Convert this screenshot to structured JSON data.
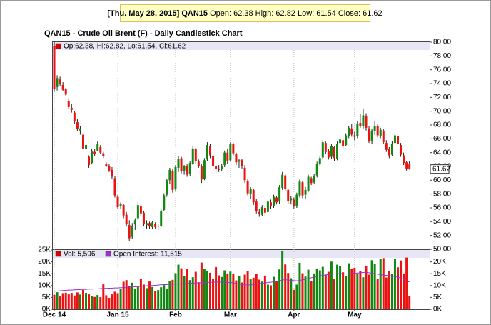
{
  "header": {
    "date": "[Thu. May 28, 2015]",
    "symbol": "QAN15",
    "stats": "Open: 62.38 High: 62.82 Low: 61.54 Close: 61.62"
  },
  "chart_data": [
    {
      "type": "candlestick",
      "title": "QAN15 - Crude Oil Brent (F) - Daily Candlestick Chart",
      "legend": "Op:62.38, Hi:62.82, Lo:61.54, Cl:61.62",
      "legend_color": "#dd0000",
      "up_color": "#118811",
      "down_color": "#ee1111",
      "xlim": [
        -0.5,
        130
      ],
      "xticks": [
        {
          "value": 0,
          "label": "Dec 14"
        },
        {
          "value": 22,
          "label": "Jan 15"
        },
        {
          "value": 42,
          "label": "Feb"
        },
        {
          "value": 61,
          "label": "Mar"
        },
        {
          "value": 83,
          "label": "Apr"
        },
        {
          "value": 104,
          "label": "May"
        }
      ],
      "ylim": [
        50,
        80
      ],
      "yticks": [
        {
          "value": 50,
          "label": "50.00"
        },
        {
          "value": 52,
          "label": "52.00"
        },
        {
          "value": 54,
          "label": "54.00"
        },
        {
          "value": 56,
          "label": "56.00"
        },
        {
          "value": 58,
          "label": "58.00"
        },
        {
          "value": 60,
          "label": "60.00"
        },
        {
          "value": 62,
          "label": "62.00"
        },
        {
          "value": 64,
          "label": "64.00"
        },
        {
          "value": 66,
          "label": "66.00"
        },
        {
          "value": 68,
          "label": "68.00"
        },
        {
          "value": 70,
          "label": "70.00"
        },
        {
          "value": 72,
          "label": "72.00"
        },
        {
          "value": 74,
          "label": "74.00"
        },
        {
          "value": 76,
          "label": "76.00"
        },
        {
          "value": 78,
          "label": "78.00"
        },
        {
          "value": 80,
          "label": "80.00"
        }
      ],
      "ohlc": [
        [
          79.5,
          80,
          72.8,
          73.2
        ],
        [
          73.5,
          75.2,
          73,
          74.8
        ],
        [
          74.6,
          75,
          73.6,
          73.9
        ],
        [
          73.8,
          74.2,
          72.9,
          73.1
        ],
        [
          73.2,
          73.4,
          72.2,
          72.4
        ],
        [
          71.5,
          71.9,
          70.3,
          70.6
        ],
        [
          70.5,
          71,
          69.8,
          70.2
        ],
        [
          69.8,
          70,
          68.2,
          68.5
        ],
        [
          68.4,
          68.9,
          67.1,
          67.4
        ],
        [
          67.2,
          67.8,
          66.6,
          67.5
        ],
        [
          66.6,
          66.9,
          64.3,
          64.6
        ],
        [
          64.5,
          65.4,
          63.8,
          65.1
        ],
        [
          63.4,
          63.6,
          61.8,
          62.2
        ],
        [
          62.5,
          64.6,
          62.3,
          64.2
        ],
        [
          64.1,
          64.5,
          63.5,
          63.8
        ],
        [
          64.3,
          65.6,
          64.2,
          65.2
        ],
        [
          64.8,
          65.1,
          63.8,
          64
        ],
        [
          63.9,
          64.1,
          63.2,
          63.5
        ],
        [
          62.3,
          62.6,
          61.9,
          62.1
        ],
        [
          62,
          62.3,
          61.2,
          61.4
        ],
        [
          61.5,
          61.9,
          60.2,
          60.5
        ],
        [
          60.3,
          60.6,
          57.5,
          57.8
        ],
        [
          57.6,
          57.9,
          55.8,
          56.1
        ],
        [
          56.3,
          56.8,
          55.9,
          56.5
        ],
        [
          56.4,
          56.6,
          54.5,
          54.9
        ],
        [
          55,
          55.4,
          53.3,
          53.6
        ],
        [
          53.5,
          54.2,
          51.2,
          51.6
        ],
        [
          51.8,
          53.8,
          51.5,
          53.4
        ],
        [
          53.6,
          54.5,
          52.8,
          54.2
        ],
        [
          54.5,
          56.8,
          54.2,
          56.4
        ],
        [
          56.2,
          56.4,
          54.8,
          55.2
        ],
        [
          55.3,
          55.6,
          53.3,
          53.6
        ],
        [
          53.5,
          54.2,
          53,
          53.8
        ],
        [
          53.8,
          54,
          52.9,
          53.3
        ],
        [
          53.2,
          54.1,
          53,
          53.9
        ],
        [
          53.7,
          53.9,
          52.9,
          53.2
        ],
        [
          53.3,
          53.6,
          52.8,
          53.4
        ],
        [
          53.4,
          55.8,
          53.2,
          55.6
        ],
        [
          55.7,
          58.1,
          55.5,
          57.8
        ],
        [
          57.9,
          60.2,
          57.6,
          60
        ],
        [
          60,
          61.8,
          59.5,
          61.5
        ],
        [
          61.3,
          61.6,
          58.2,
          58.6
        ],
        [
          58.7,
          62.2,
          58.5,
          61.9
        ],
        [
          61.8,
          63.5,
          61.2,
          63.1
        ],
        [
          63.2,
          63.4,
          61,
          61.3
        ],
        [
          61.4,
          62.2,
          60.8,
          62
        ],
        [
          62.1,
          62.3,
          60.5,
          60.8
        ],
        [
          60.9,
          62.8,
          60.6,
          62.5
        ],
        [
          62.4,
          64.9,
          62.2,
          64.6
        ],
        [
          64.5,
          64.7,
          62.4,
          62.8
        ],
        [
          62.7,
          63,
          61.8,
          62.1
        ],
        [
          62,
          62.3,
          59.6,
          60.1
        ],
        [
          60.2,
          63.2,
          60,
          62.9
        ],
        [
          63,
          65.5,
          62.8,
          65.1
        ],
        [
          65,
          65.3,
          63.2,
          63.6
        ],
        [
          63.5,
          63.9,
          61.6,
          62
        ],
        [
          62.1,
          62.3,
          61.1,
          61.6
        ],
        [
          61.7,
          62.2,
          61.2,
          61.5
        ],
        [
          61.6,
          62.4,
          61.3,
          62.1
        ],
        [
          62.2,
          64.3,
          61.9,
          64
        ],
        [
          64,
          64.5,
          62.4,
          62.8
        ],
        [
          62.9,
          65.5,
          62.7,
          65.3
        ],
        [
          65.2,
          65.4,
          63.6,
          63.9
        ],
        [
          63.8,
          64,
          62.2,
          62.6
        ],
        [
          62.7,
          63.1,
          61.8,
          62.9
        ],
        [
          62.9,
          63.1,
          61.7,
          62
        ],
        [
          61.8,
          62.2,
          59.6,
          60
        ],
        [
          59.9,
          60.2,
          57.8,
          58.1
        ],
        [
          58,
          59,
          57.3,
          58.7
        ],
        [
          58.6,
          58.8,
          56.4,
          56.8
        ],
        [
          56.9,
          57.3,
          55.2,
          55.5
        ],
        [
          55.4,
          55.9,
          54.7,
          55.1
        ],
        [
          55,
          56.4,
          54.8,
          56.1
        ],
        [
          56,
          56.2,
          54.9,
          55.3
        ],
        [
          55.4,
          57.2,
          55.2,
          56.9
        ],
        [
          56.8,
          57.2,
          55.8,
          56.2
        ],
        [
          56.3,
          57.9,
          56,
          57.6
        ],
        [
          57.5,
          57.7,
          56.5,
          56.8
        ],
        [
          56.9,
          59.3,
          56.6,
          59
        ],
        [
          58.9,
          61.2,
          58.6,
          60.8
        ],
        [
          60.7,
          60.9,
          58.4,
          58.7
        ],
        [
          58.6,
          58.8,
          56.6,
          57
        ],
        [
          57.1,
          57.7,
          56.5,
          57.4
        ],
        [
          57.2,
          57.5,
          55.9,
          56.2
        ],
        [
          56.3,
          58.2,
          56,
          57.9
        ],
        [
          57.8,
          60.1,
          57.5,
          59.8
        ],
        [
          59.7,
          59.9,
          57.4,
          57.8
        ],
        [
          57.9,
          59,
          57.3,
          58.6
        ],
        [
          58.5,
          60.8,
          58.3,
          60.5
        ],
        [
          60.3,
          60.5,
          59.3,
          59.6
        ],
        [
          59.7,
          60.9,
          59.4,
          60.6
        ],
        [
          60.7,
          62.7,
          60.4,
          62.4
        ],
        [
          62.3,
          63.5,
          62.1,
          63.2
        ],
        [
          63.3,
          65.8,
          63,
          65.5
        ],
        [
          65.4,
          65.6,
          63.8,
          64.1
        ],
        [
          64.2,
          64.5,
          63,
          63.3
        ],
        [
          63.4,
          65.2,
          63.1,
          64.9
        ],
        [
          64.8,
          65,
          62.8,
          63.2
        ],
        [
          63.1,
          65.6,
          62.9,
          65.3
        ],
        [
          65.4,
          66.2,
          65,
          65.9
        ],
        [
          65.8,
          66.1,
          64.6,
          65
        ],
        [
          65.1,
          66.8,
          64.9,
          66.5
        ],
        [
          66.4,
          67.9,
          66.1,
          67.6
        ],
        [
          67.5,
          68.2,
          66.3,
          66.6
        ],
        [
          66.5,
          67,
          65.8,
          66.3
        ],
        [
          66.4,
          68.6,
          66.1,
          68.2
        ],
        [
          68.3,
          69.6,
          67.6,
          67.9
        ],
        [
          67.8,
          70.4,
          67.5,
          69.4
        ],
        [
          69.3,
          69.7,
          67.2,
          67.6
        ],
        [
          67.5,
          67.8,
          65.4,
          65.6
        ],
        [
          65.7,
          67.5,
          65.2,
          67.2
        ],
        [
          67.1,
          68.6,
          66.6,
          67.9
        ],
        [
          67.8,
          68.1,
          66.2,
          66.5
        ],
        [
          66.4,
          67.6,
          66.1,
          67.3
        ],
        [
          67.2,
          67.4,
          65.2,
          65.5
        ],
        [
          65.4,
          65.8,
          64.1,
          64.4
        ],
        [
          64.5,
          64.8,
          63.2,
          63.6
        ],
        [
          63.7,
          65.7,
          63.5,
          65.3
        ],
        [
          65.4,
          66.8,
          65.2,
          66.5
        ],
        [
          66.4,
          66.6,
          65,
          65.2
        ],
        [
          65.1,
          65.4,
          63.4,
          63.7
        ],
        [
          63.6,
          64,
          62.2,
          62.5
        ],
        [
          62.6,
          62.8,
          61.4,
          61.7
        ],
        [
          62.38,
          62.82,
          61.54,
          61.62
        ]
      ]
    },
    {
      "type": "volume",
      "xlim": [
        -0.5,
        130
      ],
      "ylim": [
        0,
        25000
      ],
      "yticks": [
        {
          "value": 0,
          "label": "0K"
        },
        {
          "value": 5000,
          "label": "5K"
        },
        {
          "value": 10000,
          "label": "10K"
        },
        {
          "value": 15000,
          "label": "15K"
        },
        {
          "value": 20000,
          "label": "20K"
        },
        {
          "value": 25000,
          "label": "25K"
        }
      ],
      "y2lim": [
        0,
        25000
      ],
      "y2ticks": [
        {
          "value": 0,
          "label": "0K"
        },
        {
          "value": 5000,
          "label": "5K"
        },
        {
          "value": 10000,
          "label": "10K"
        },
        {
          "value": 15000,
          "label": "15K"
        },
        {
          "value": 20000,
          "label": "20K"
        }
      ],
      "series": [
        {
          "name": "Vol: 5,596",
          "color": "#dd0000",
          "values": [
            6100,
            7200,
            5400,
            6800,
            7000,
            6500,
            6900,
            5800,
            7100,
            6200,
            8200,
            6900,
            6300,
            5600,
            5200,
            6000,
            5100,
            10500,
            5900,
            4800,
            6300,
            7400,
            6800,
            8500,
            11600,
            12300,
            9800,
            11200,
            8700,
            9500,
            12800,
            10400,
            8900,
            11700,
            9400,
            7800,
            8100,
            9300,
            10200,
            8600,
            11900,
            12400,
            15200,
            18800,
            17300,
            14100,
            16900,
            12300,
            13500,
            15800,
            11400,
            19700,
            17100,
            16200,
            15400,
            12900,
            17800,
            14300,
            13600,
            16400,
            15100,
            15900,
            14800,
            12200,
            13900,
            11300,
            14600,
            16100,
            12800,
            13300,
            15000,
            12500,
            11700,
            14200,
            10400,
            10100,
            13700,
            11900,
            16800,
            24600,
            18900,
            15300,
            13100,
            8200,
            10400,
            19600,
            15200,
            13800,
            16700,
            11900,
            15100,
            17200,
            16400,
            17900,
            14600,
            15800,
            20100,
            12700,
            18800,
            18300,
            15600,
            13900,
            19400,
            16900,
            17500,
            15100,
            16100,
            13500,
            18400,
            14600,
            20700,
            19200,
            12900,
            21300,
            21600,
            13400,
            16200,
            14800,
            21200,
            17700,
            20600,
            15100,
            21800,
            5596
          ]
        },
        {
          "name": "Open Interest: 11,515",
          "color": "#9933cc",
          "axis": "y2",
          "values": [
            7600,
            7700,
            7800,
            7900,
            8000,
            8100,
            8100,
            8200,
            8300,
            8300,
            8400,
            8400,
            8500,
            8500,
            8600,
            8600,
            8700,
            8800,
            8800,
            8900,
            8900,
            9000,
            9000,
            9100,
            9100,
            9200,
            9300,
            9400,
            9500,
            9600,
            9700,
            9800,
            9900,
            10000,
            10000,
            10100,
            10200,
            10300,
            10400,
            10400,
            10500,
            10600,
            10600,
            10700,
            10800,
            10800,
            10900,
            11000,
            11000,
            11100,
            11200,
            11200,
            11300,
            11300,
            11400,
            11400,
            11500,
            11500,
            11400,
            11400,
            11300,
            11300,
            11200,
            10900,
            10600,
            10400,
            10300,
            10200,
            10300,
            10400,
            10600,
            10800,
            11000,
            11100,
            11300,
            11400,
            11600,
            11800,
            12000,
            12300,
            12500,
            12300,
            12200,
            12100,
            12000,
            12200,
            12400,
            12700,
            13000,
            13300,
            13600,
            13900,
            14100,
            14300,
            14500,
            14700,
            14800,
            14900,
            15000,
            15100,
            15000,
            14900,
            15000,
            15100,
            15200,
            15300,
            15400,
            15500,
            15600,
            15400,
            15200,
            15000,
            14800,
            14600,
            14400,
            14300,
            14200,
            14000,
            13800,
            13500,
            13100,
            12600,
            12000,
            11515
          ]
        }
      ]
    }
  ]
}
